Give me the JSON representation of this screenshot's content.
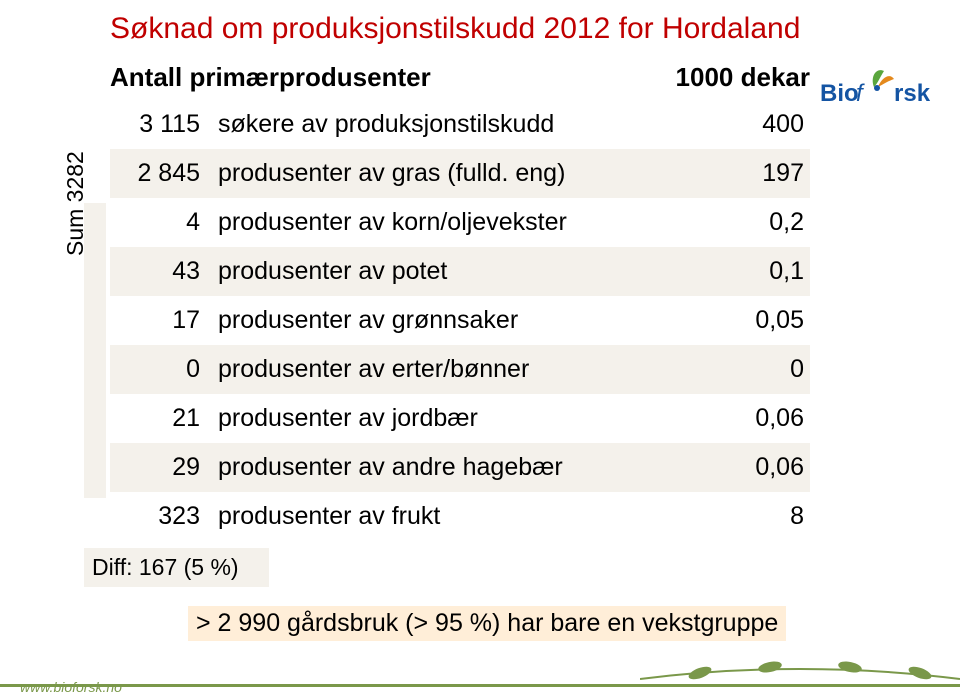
{
  "colors": {
    "title": "#c00000",
    "text": "#000000",
    "stripe": "#f4f1eb",
    "footnote_bg": "#ffeed8",
    "footer_green": "#7a984a",
    "logo_blue": "#1454a3",
    "logo_green": "#5aa63d",
    "logo_orange": "#e4891d"
  },
  "title": "Søknad om produksjonstilskudd 2012 for Hordaland",
  "subtitle_left": "Antall primærprodusenter",
  "subtitle_right": "1000 dekar",
  "logo_text": "Bioforsk",
  "table": {
    "rows": [
      {
        "num": "3 115",
        "label": "søkere av produksjonstilskudd",
        "val": "400",
        "stripe": false
      },
      {
        "num": "2 845",
        "label": "produsenter av gras (fulld. eng)",
        "val": "197",
        "stripe": true
      },
      {
        "num": "4",
        "label": "produsenter av korn/oljevekster",
        "val": "0,2",
        "stripe": false
      },
      {
        "num": "43",
        "label": "produsenter av potet",
        "val": "0,1",
        "stripe": true
      },
      {
        "num": "17",
        "label": "produsenter av grønnsaker",
        "val": "0,05",
        "stripe": false
      },
      {
        "num": "0",
        "label": "produsenter av erter/bønner",
        "val": "0",
        "stripe": true
      },
      {
        "num": "21",
        "label": "produsenter av jordbær",
        "val": "0,06",
        "stripe": false
      },
      {
        "num": "29",
        "label": "produsenter av andre hagebær",
        "val": "0,06",
        "stripe": true
      },
      {
        "num": "323",
        "label": "produsenter av frukt",
        "val": "8",
        "stripe": false
      }
    ]
  },
  "sum_label": "Sum 3282",
  "diff_label": "Diff: 167 (5 %)",
  "footnote": "> 2 990 gårdsbruk (> 95 %) har bare en vekstgruppe",
  "footer_url": "www.bioforsk.no"
}
